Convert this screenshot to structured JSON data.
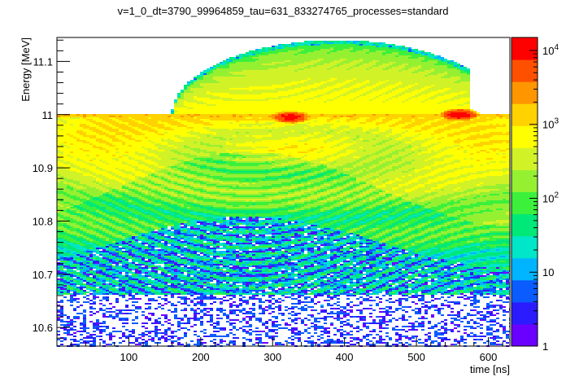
{
  "chart_data": {
    "type": "heatmap",
    "title": "v=1_0_dt=3790_99964859_tau=631_833274765_processes=standard",
    "xlabel": "time [ns]",
    "ylabel": "Energy [MeV]",
    "xlim": [
      0,
      630
    ],
    "ylim": [
      10.565,
      11.145
    ],
    "x_ticks": [
      {
        "value": 100,
        "label": "100"
      },
      {
        "value": 200,
        "label": "200"
      },
      {
        "value": 300,
        "label": "300"
      },
      {
        "value": 400,
        "label": "400"
      },
      {
        "value": 500,
        "label": "500"
      },
      {
        "value": 600,
        "label": "600"
      }
    ],
    "y_ticks": [
      {
        "value": 10.6,
        "label": "10.6"
      },
      {
        "value": 10.7,
        "label": "10.7"
      },
      {
        "value": 10.8,
        "label": "10.8"
      },
      {
        "value": 10.9,
        "label": "10.9"
      },
      {
        "value": 11.0,
        "label": "11"
      },
      {
        "value": 11.1,
        "label": "11.1"
      }
    ],
    "colorbar": {
      "scale": "log",
      "range": [
        1,
        15000
      ],
      "ticks": [
        {
          "value": 1,
          "base": "1",
          "exp": ""
        },
        {
          "value": 10,
          "base": "10",
          "exp": ""
        },
        {
          "value": 100,
          "base": "10",
          "exp": "2"
        },
        {
          "value": 1000,
          "base": "10",
          "exp": "3"
        },
        {
          "value": 10000,
          "base": "10",
          "exp": "4"
        }
      ],
      "colors": [
        "#6a00ff",
        "#2b1cff",
        "#0a5cff",
        "#00b4ff",
        "#00e6c8",
        "#00e878",
        "#3cf03c",
        "#96f032",
        "#d2f228",
        "#ffff00",
        "#ffd200",
        "#ff9600",
        "#ff5000",
        "#ff0000"
      ]
    },
    "features": {
      "bright_line_energy": 11.0,
      "hot_spots": [
        {
          "x": 325,
          "y": 10.995
        },
        {
          "x": 560,
          "y": 11.0
        }
      ],
      "upper_lobe": {
        "x_start": 155,
        "x_end": 575,
        "y_top": 11.14
      },
      "sparse_below_energy": 10.66
    },
    "grid": false,
    "legend": "colorbar-right"
  }
}
